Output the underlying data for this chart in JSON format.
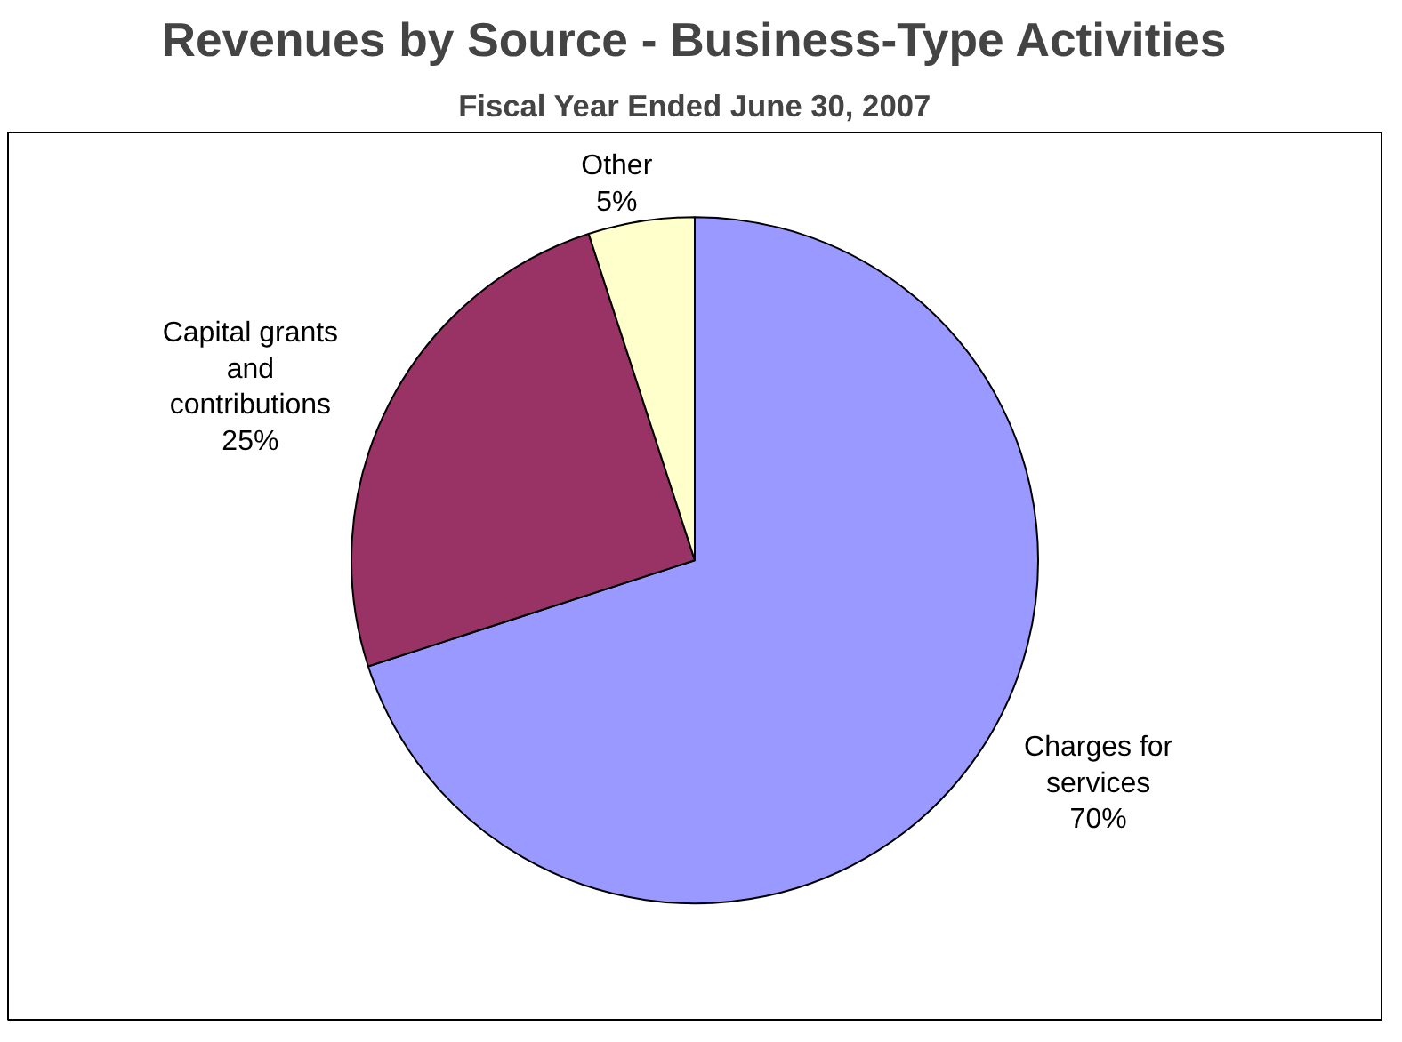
{
  "chart_data": {
    "type": "pie",
    "title": "Revenues by Source - Business-Type Activities",
    "subtitle": "Fiscal Year Ended June 30, 2007",
    "categories": [
      "Charges for services",
      "Capital grants and contributions",
      "Other"
    ],
    "values": [
      70,
      25,
      5
    ],
    "colors": [
      "#9999ff",
      "#993366",
      "#ffffcc"
    ],
    "value_labels": [
      "70%",
      "25%",
      "5%"
    ]
  }
}
